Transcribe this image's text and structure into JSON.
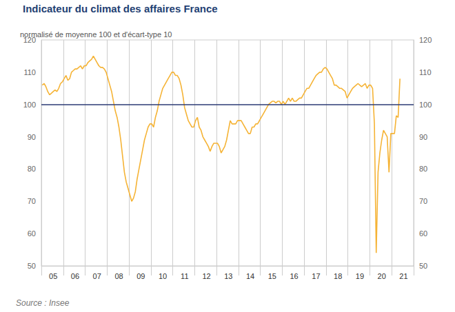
{
  "chart_data": {
    "type": "line",
    "title": "Indicateur du climat des affaires France",
    "subtitle": "normalisé de moyenne 100 et d'écart-type 10",
    "source": "Source : Insee",
    "categories": [
      null,
      null,
      null,
      null,
      null,
      null,
      "05",
      null,
      null,
      null,
      null,
      null,
      null,
      null,
      null,
      null,
      null,
      null,
      "06",
      null,
      null,
      null,
      null,
      null,
      null,
      null,
      null,
      null,
      null,
      null,
      "07",
      null,
      null,
      null,
      null,
      null,
      null,
      null,
      null,
      null,
      null,
      null,
      "08",
      null,
      null,
      null,
      null,
      null,
      null,
      null,
      null,
      null,
      null,
      null,
      "09",
      null,
      null,
      null,
      null,
      null,
      null,
      null,
      null,
      null,
      null,
      null,
      "10",
      null,
      null,
      null,
      null,
      null,
      null,
      null,
      null,
      null,
      null,
      null,
      "11",
      null,
      null,
      null,
      null,
      null,
      null,
      null,
      null,
      null,
      null,
      null,
      "12",
      null,
      null,
      null,
      null,
      null,
      null,
      null,
      null,
      null,
      null,
      null,
      "13",
      null,
      null,
      null,
      null,
      null,
      null,
      null,
      null,
      null,
      null,
      null,
      "14",
      null,
      null,
      null,
      null,
      null,
      null,
      null,
      null,
      null,
      null,
      null,
      "15",
      null,
      null,
      null,
      null,
      null,
      null,
      null,
      null,
      null,
      null,
      null,
      "16",
      null,
      null,
      null,
      null,
      null,
      null,
      null,
      null,
      null,
      null,
      null,
      "17",
      null,
      null,
      null,
      null,
      null,
      null,
      null,
      null,
      null,
      null,
      null,
      "18",
      null,
      null,
      null,
      null,
      null,
      null,
      null,
      null,
      null,
      null,
      null,
      "19",
      null,
      null,
      null,
      null,
      null,
      null,
      null,
      null,
      null,
      null,
      null,
      "20",
      null,
      null,
      null,
      null,
      null,
      null,
      null,
      null,
      null,
      null,
      null,
      "21",
      null,
      null,
      null,
      null,
      null
    ],
    "values": [
      106,
      106.5,
      105.5,
      104,
      103,
      103.5,
      104,
      104.5,
      104,
      105,
      106.5,
      107,
      108,
      109,
      107.5,
      108,
      110,
      110.5,
      111,
      111,
      111.5,
      112,
      111,
      112,
      112,
      113,
      113.5,
      114,
      115,
      114,
      113,
      112,
      111.5,
      111.5,
      111,
      110,
      108,
      106,
      104,
      101,
      98,
      96,
      93,
      89,
      84,
      79,
      76,
      74,
      72,
      70,
      71,
      73,
      77,
      80,
      83,
      86,
      89,
      91,
      93,
      94,
      94,
      93,
      96,
      98,
      101,
      103,
      105,
      106,
      107,
      108,
      109,
      110,
      110,
      109,
      109,
      108,
      106,
      103,
      99,
      97,
      95,
      94,
      93,
      93,
      95,
      96,
      93,
      92,
      90,
      89,
      88,
      87,
      85.5,
      87,
      88,
      88,
      88,
      87,
      85,
      86,
      87,
      89,
      92,
      95,
      94,
      94,
      94,
      95,
      95,
      95,
      94,
      93,
      92,
      91,
      91,
      93,
      93,
      94,
      94,
      95,
      96,
      97,
      98,
      99,
      100,
      100.5,
      101,
      101,
      100.5,
      101,
      101,
      100,
      101,
      100,
      101,
      102,
      101,
      102,
      101,
      101,
      101.5,
      102,
      102,
      103,
      104,
      105,
      105,
      106,
      107,
      108,
      109,
      109.5,
      110,
      110,
      111,
      111.5,
      111,
      110,
      109,
      108,
      106,
      106,
      105.5,
      105,
      105,
      104.5,
      104,
      102,
      103,
      104,
      105,
      105.5,
      106,
      106.5,
      106,
      105.5,
      106,
      106.5,
      105,
      106,
      106,
      105,
      94,
      54,
      79,
      85,
      89,
      92,
      91,
      90,
      79,
      91,
      91,
      91,
      96.5,
      96,
      108,
      null,
      null,
      null,
      null,
      null,
      null,
      null
    ],
    "color": "#f5b335",
    "ylim": [
      50,
      120
    ],
    "yticks": [
      50,
      60,
      70,
      80,
      90,
      100,
      110,
      120
    ],
    "hlines": [
      {
        "value": 100,
        "color": "#2b3a74"
      }
    ],
    "grid": true
  }
}
